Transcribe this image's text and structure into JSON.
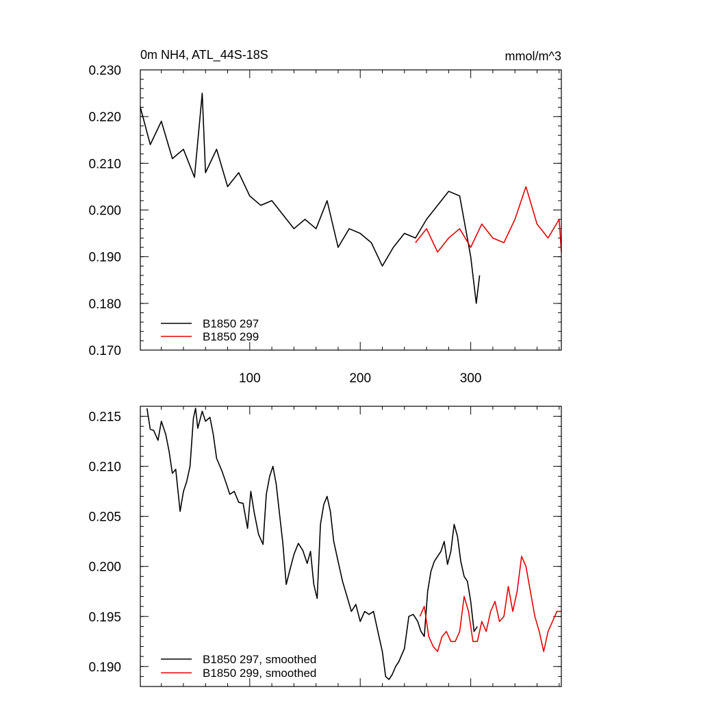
{
  "chart_data": [
    {
      "type": "line",
      "title": "0m NH4, ATL_44S-18S",
      "units_label": "mmol/m^3",
      "xlim": [
        1,
        382
      ],
      "ylim": [
        0.17,
        0.23
      ],
      "x_ticks": [
        100,
        200,
        300
      ],
      "x_tick_labels": [
        "100",
        "200",
        "300"
      ],
      "y_ticks": [
        0.17,
        0.18,
        0.19,
        0.2,
        0.21,
        0.22,
        0.23
      ],
      "y_tick_labels": [
        "0.170",
        "0.180",
        "0.190",
        "0.200",
        "0.210",
        "0.220",
        "0.230"
      ],
      "legend": {
        "placement": "bottom-left",
        "entries": [
          "B1850 297",
          "B1850 299"
        ]
      },
      "series": [
        {
          "name": "B1850 297",
          "color": "#000000",
          "x": [
            1,
            10,
            20,
            30,
            40,
            50,
            57,
            60,
            70,
            80,
            90,
            100,
            110,
            120,
            130,
            140,
            150,
            160,
            170,
            180,
            190,
            200,
            210,
            220,
            230,
            240,
            250,
            260,
            270,
            280,
            290,
            300,
            305,
            308
          ],
          "y": [
            0.222,
            0.214,
            0.219,
            0.211,
            0.213,
            0.207,
            0.225,
            0.208,
            0.213,
            0.205,
            0.208,
            0.203,
            0.201,
            0.202,
            0.199,
            0.196,
            0.198,
            0.196,
            0.202,
            0.192,
            0.196,
            0.195,
            0.193,
            0.188,
            0.192,
            0.195,
            0.194,
            0.198,
            0.201,
            0.204,
            0.203,
            0.19,
            0.18,
            0.186
          ]
        },
        {
          "name": "B1850 299",
          "color": "#e60000",
          "x": [
            250,
            260,
            270,
            280,
            290,
            300,
            310,
            320,
            330,
            340,
            350,
            360,
            370,
            380,
            382
          ],
          "y": [
            0.193,
            0.196,
            0.191,
            0.194,
            0.196,
            0.192,
            0.197,
            0.194,
            0.193,
            0.198,
            0.205,
            0.197,
            0.194,
            0.198,
            0.191
          ]
        }
      ]
    },
    {
      "type": "line",
      "title": "",
      "xlim": [
        1,
        382
      ],
      "ylim": [
        0.188,
        0.216
      ],
      "x_ticks": [
        100,
        200,
        300
      ],
      "x_tick_labels": [],
      "y_ticks": [
        0.19,
        0.195,
        0.2,
        0.205,
        0.21,
        0.215
      ],
      "y_tick_labels": [
        "0.190",
        "0.195",
        "0.200",
        "0.205",
        "0.210",
        "0.215"
      ],
      "legend": {
        "placement": "bottom-left",
        "entries": [
          "B1850 297, smoothed",
          "B1850 299, smoothed"
        ]
      },
      "series": [
        {
          "name": "B1850 297, smoothed",
          "color": "#000000",
          "x": [
            7,
            10,
            13,
            17,
            20,
            24,
            27,
            30,
            33,
            37,
            40,
            43,
            46,
            49,
            51,
            53,
            57,
            60,
            64,
            67,
            70,
            75,
            79,
            82,
            86,
            90,
            94,
            98,
            101,
            104,
            108,
            112,
            115,
            118,
            121,
            124,
            127,
            130,
            133,
            136,
            140,
            144,
            148,
            152,
            155,
            158,
            161,
            164,
            167,
            170,
            173,
            176,
            180,
            184,
            188,
            192,
            196,
            200,
            204,
            208,
            212,
            216,
            220,
            223,
            226,
            229,
            232,
            235,
            240,
            244,
            248,
            252,
            255,
            258,
            261,
            264,
            267,
            270,
            273,
            276,
            279,
            282,
            285,
            288,
            291,
            294,
            297,
            300,
            303,
            306
          ],
          "y": [
            0.2158,
            0.2137,
            0.2136,
            0.2126,
            0.2145,
            0.2132,
            0.2115,
            0.2093,
            0.2097,
            0.2055,
            0.2075,
            0.2085,
            0.21,
            0.2148,
            0.2158,
            0.2138,
            0.2155,
            0.2145,
            0.2149,
            0.2132,
            0.2108,
            0.2095,
            0.2082,
            0.2072,
            0.2075,
            0.2064,
            0.2063,
            0.2038,
            0.2075,
            0.2054,
            0.2032,
            0.2022,
            0.2072,
            0.209,
            0.21,
            0.2082,
            0.2052,
            0.2023,
            0.1982,
            0.1995,
            0.2012,
            0.2023,
            0.2016,
            0.2003,
            0.2015,
            0.1982,
            0.1968,
            0.2042,
            0.2062,
            0.207,
            0.2055,
            0.2025,
            0.2005,
            0.1985,
            0.197,
            0.1955,
            0.1962,
            0.1945,
            0.1955,
            0.1952,
            0.1955,
            0.1935,
            0.1915,
            0.189,
            0.1887,
            0.1892,
            0.19,
            0.1905,
            0.1918,
            0.195,
            0.1952,
            0.1945,
            0.1935,
            0.193,
            0.1975,
            0.1995,
            0.2005,
            0.201,
            0.2015,
            0.2025,
            0.2002,
            0.2015,
            0.2042,
            0.203,
            0.2005,
            0.199,
            0.1985,
            0.1965,
            0.1935,
            0.194
          ]
        },
        {
          "name": "B1850 299, smoothed",
          "color": "#e60000",
          "x": [
            254,
            258,
            262,
            266,
            270,
            274,
            278,
            282,
            286,
            290,
            294,
            298,
            302,
            306,
            310,
            314,
            318,
            322,
            326,
            330,
            334,
            338,
            342,
            346,
            350,
            354,
            358,
            362,
            366,
            370,
            374,
            378,
            382
          ],
          "y": [
            0.195,
            0.196,
            0.193,
            0.192,
            0.1915,
            0.193,
            0.1935,
            0.1925,
            0.1925,
            0.1935,
            0.197,
            0.1955,
            0.1925,
            0.1925,
            0.1945,
            0.1935,
            0.1955,
            0.1965,
            0.1945,
            0.195,
            0.198,
            0.1955,
            0.1975,
            0.201,
            0.2,
            0.1975,
            0.195,
            0.1935,
            0.1915,
            0.1935,
            0.1945,
            0.1955,
            0.1955
          ]
        }
      ]
    }
  ]
}
